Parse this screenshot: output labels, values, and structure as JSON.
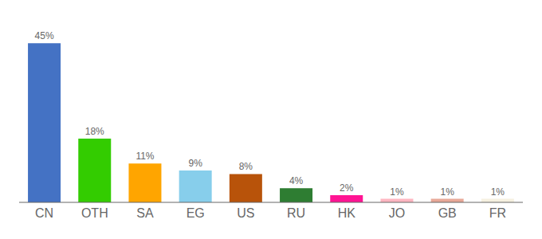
{
  "chart_data": {
    "type": "bar",
    "categories": [
      "CN",
      "OTH",
      "SA",
      "EG",
      "US",
      "RU",
      "HK",
      "JO",
      "GB",
      "FR"
    ],
    "values": [
      45,
      18,
      11,
      9,
      8,
      4,
      2,
      1,
      1,
      1
    ],
    "value_labels": [
      "45%",
      "18%",
      "11%",
      "9%",
      "8%",
      "4%",
      "2%",
      "1%",
      "1%",
      "1%"
    ],
    "colors": [
      "#4472C4",
      "#33CC00",
      "#FFA500",
      "#87CEEB",
      "#B8530A",
      "#2E7D32",
      "#FF1493",
      "#FFB6C1",
      "#E8A898",
      "#F5F0E0"
    ],
    "ylim": [
      0,
      50
    ],
    "data_labels": true,
    "grid": false,
    "tick_labels": "x"
  }
}
